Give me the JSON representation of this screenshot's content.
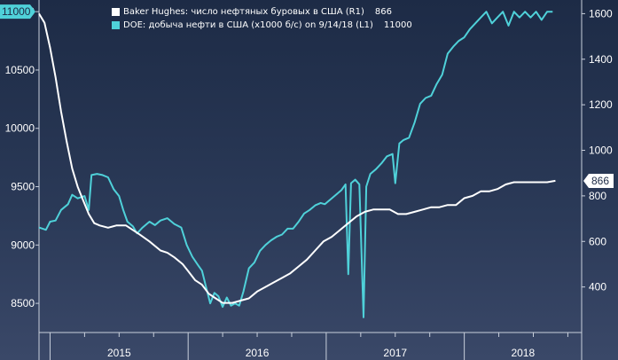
{
  "chart_data": {
    "type": "line",
    "x_range": [
      2014.92,
      2018.85
    ],
    "x_tick_labels": [
      "2015",
      "2016",
      "2017",
      "2018"
    ],
    "y_left": {
      "range": [
        8250,
        11100
      ],
      "ticks": [
        8500,
        9000,
        9500,
        10000,
        10500,
        11000
      ]
    },
    "y_right": {
      "range": [
        200,
        1660
      ],
      "ticks": [
        400,
        600,
        800,
        1000,
        1200,
        1400,
        1600
      ]
    },
    "series": [
      {
        "name": "DOE: добыча нефти в США (x1000 б/с) on 9/14/18 (L1)",
        "axis": "left",
        "color": "#4fd1d9",
        "last_value": "11000",
        "last_value_label": "11000",
        "points": [
          [
            2014.92,
            9150
          ],
          [
            2014.97,
            9130
          ],
          [
            2015.0,
            9200
          ],
          [
            2015.04,
            9210
          ],
          [
            2015.08,
            9300
          ],
          [
            2015.13,
            9350
          ],
          [
            2015.16,
            9430
          ],
          [
            2015.2,
            9400
          ],
          [
            2015.25,
            9420
          ],
          [
            2015.28,
            9300
          ],
          [
            2015.3,
            9600
          ],
          [
            2015.34,
            9610
          ],
          [
            2015.38,
            9600
          ],
          [
            2015.42,
            9580
          ],
          [
            2015.46,
            9480
          ],
          [
            2015.5,
            9420
          ],
          [
            2015.53,
            9300
          ],
          [
            2015.56,
            9200
          ],
          [
            2015.6,
            9160
          ],
          [
            2015.63,
            9100
          ],
          [
            2015.67,
            9150
          ],
          [
            2015.72,
            9200
          ],
          [
            2015.76,
            9170
          ],
          [
            2015.8,
            9210
          ],
          [
            2015.85,
            9230
          ],
          [
            2015.9,
            9180
          ],
          [
            2015.95,
            9150
          ],
          [
            2015.99,
            9000
          ],
          [
            2016.03,
            8900
          ],
          [
            2016.07,
            8830
          ],
          [
            2016.1,
            8780
          ],
          [
            2016.13,
            8640
          ],
          [
            2016.16,
            8500
          ],
          [
            2016.19,
            8590
          ],
          [
            2016.22,
            8560
          ],
          [
            2016.25,
            8470
          ],
          [
            2016.28,
            8550
          ],
          [
            2016.31,
            8480
          ],
          [
            2016.34,
            8500
          ],
          [
            2016.37,
            8480
          ],
          [
            2016.4,
            8600
          ],
          [
            2016.44,
            8800
          ],
          [
            2016.48,
            8850
          ],
          [
            2016.52,
            8950
          ],
          [
            2016.56,
            9000
          ],
          [
            2016.6,
            9040
          ],
          [
            2016.64,
            9070
          ],
          [
            2016.68,
            9090
          ],
          [
            2016.72,
            9140
          ],
          [
            2016.76,
            9140
          ],
          [
            2016.8,
            9200
          ],
          [
            2016.84,
            9270
          ],
          [
            2016.88,
            9300
          ],
          [
            2016.92,
            9340
          ],
          [
            2016.96,
            9360
          ],
          [
            2016.99,
            9350
          ],
          [
            2017.03,
            9390
          ],
          [
            2017.07,
            9430
          ],
          [
            2017.11,
            9470
          ],
          [
            2017.14,
            9520
          ],
          [
            2017.16,
            8750
          ],
          [
            2017.18,
            9530
          ],
          [
            2017.21,
            9560
          ],
          [
            2017.24,
            9520
          ],
          [
            2017.27,
            8380
          ],
          [
            2017.29,
            9500
          ],
          [
            2017.32,
            9610
          ],
          [
            2017.36,
            9650
          ],
          [
            2017.4,
            9700
          ],
          [
            2017.44,
            9760
          ],
          [
            2017.48,
            9780
          ],
          [
            2017.5,
            9530
          ],
          [
            2017.53,
            9870
          ],
          [
            2017.56,
            9900
          ],
          [
            2017.6,
            9920
          ],
          [
            2017.64,
            10050
          ],
          [
            2017.68,
            10210
          ],
          [
            2017.72,
            10260
          ],
          [
            2017.76,
            10280
          ],
          [
            2017.8,
            10380
          ],
          [
            2017.84,
            10460
          ],
          [
            2017.88,
            10640
          ],
          [
            2017.92,
            10700
          ],
          [
            2017.96,
            10750
          ],
          [
            2018.0,
            10780
          ],
          [
            2018.04,
            10850
          ],
          [
            2018.08,
            10900
          ],
          [
            2018.12,
            10950
          ],
          [
            2018.16,
            11000
          ],
          [
            2018.2,
            10900
          ],
          [
            2018.24,
            10950
          ],
          [
            2018.28,
            11000
          ],
          [
            2018.32,
            10880
          ],
          [
            2018.36,
            11000
          ],
          [
            2018.4,
            10950
          ],
          [
            2018.44,
            11000
          ],
          [
            2018.48,
            10950
          ],
          [
            2018.52,
            11000
          ],
          [
            2018.56,
            10930
          ],
          [
            2018.6,
            11000
          ],
          [
            2018.64,
            11000
          ]
        ]
      },
      {
        "name": "Baker Hughes: число нефтяных буровых в США (R1)",
        "axis": "right",
        "color": "#ffffff",
        "last_value": "866",
        "last_value_label": "866",
        "points": [
          [
            2014.92,
            1600
          ],
          [
            2014.96,
            1560
          ],
          [
            2015.0,
            1450
          ],
          [
            2015.04,
            1320
          ],
          [
            2015.08,
            1170
          ],
          [
            2015.12,
            1040
          ],
          [
            2015.16,
            920
          ],
          [
            2015.2,
            840
          ],
          [
            2015.24,
            780
          ],
          [
            2015.28,
            720
          ],
          [
            2015.32,
            680
          ],
          [
            2015.36,
            670
          ],
          [
            2015.42,
            660
          ],
          [
            2015.48,
            670
          ],
          [
            2015.55,
            670
          ],
          [
            2015.6,
            650
          ],
          [
            2015.65,
            630
          ],
          [
            2015.72,
            600
          ],
          [
            2015.8,
            560
          ],
          [
            2015.85,
            550
          ],
          [
            2015.9,
            530
          ],
          [
            2015.96,
            500
          ],
          [
            2016.0,
            470
          ],
          [
            2016.05,
            430
          ],
          [
            2016.1,
            410
          ],
          [
            2016.15,
            370
          ],
          [
            2016.2,
            350
          ],
          [
            2016.25,
            330
          ],
          [
            2016.32,
            330
          ],
          [
            2016.38,
            340
          ],
          [
            2016.44,
            350
          ],
          [
            2016.5,
            380
          ],
          [
            2016.56,
            400
          ],
          [
            2016.62,
            420
          ],
          [
            2016.68,
            440
          ],
          [
            2016.74,
            460
          ],
          [
            2016.8,
            490
          ],
          [
            2016.86,
            520
          ],
          [
            2016.92,
            560
          ],
          [
            2016.98,
            600
          ],
          [
            2017.04,
            620
          ],
          [
            2017.1,
            650
          ],
          [
            2017.16,
            680
          ],
          [
            2017.22,
            710
          ],
          [
            2017.28,
            730
          ],
          [
            2017.34,
            740
          ],
          [
            2017.4,
            740
          ],
          [
            2017.46,
            740
          ],
          [
            2017.52,
            720
          ],
          [
            2017.58,
            720
          ],
          [
            2017.64,
            730
          ],
          [
            2017.7,
            740
          ],
          [
            2017.76,
            750
          ],
          [
            2017.82,
            750
          ],
          [
            2017.88,
            760
          ],
          [
            2017.94,
            760
          ],
          [
            2018.0,
            790
          ],
          [
            2018.06,
            800
          ],
          [
            2018.12,
            820
          ],
          [
            2018.18,
            820
          ],
          [
            2018.24,
            830
          ],
          [
            2018.3,
            850
          ],
          [
            2018.36,
            860
          ],
          [
            2018.42,
            860
          ],
          [
            2018.48,
            860
          ],
          [
            2018.54,
            860
          ],
          [
            2018.6,
            860
          ],
          [
            2018.66,
            866
          ]
        ]
      }
    ]
  },
  "legend": {
    "items": [
      {
        "label": "Baker Hughes: число нефтяных буровых в США (R1)",
        "value": "866",
        "color": "#ffffff"
      },
      {
        "label": "DOE: добыча нефти в США (x1000 б/с) on 9/14/18 (L1)",
        "value": "11000",
        "color": "#4fd1d9"
      }
    ]
  }
}
